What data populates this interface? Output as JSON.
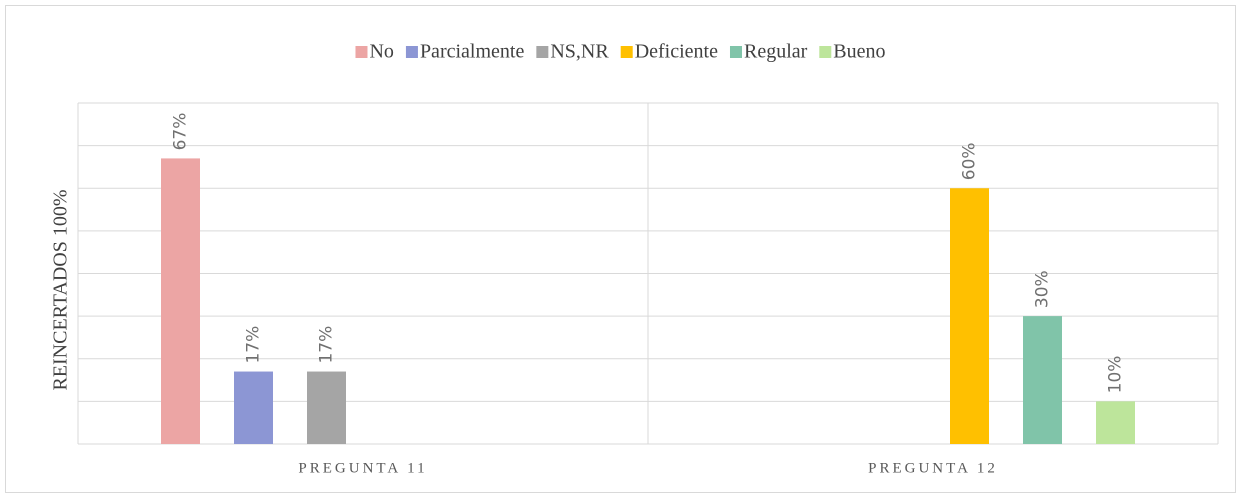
{
  "chart_data": {
    "type": "bar",
    "y_label": "REINCERTADOS 100%",
    "categories": [
      "PREGUNTA 11",
      "PREGUNTA 12"
    ],
    "series": [
      {
        "name": "No",
        "color": "#eca5a4",
        "values": [
          67,
          null
        ],
        "value_labels": [
          "67%",
          null
        ]
      },
      {
        "name": "Parcialmente",
        "color": "#8c96d4",
        "values": [
          17,
          null
        ],
        "value_labels": [
          "17%",
          null
        ]
      },
      {
        "name": "NS,NR",
        "color": "#a5a5a5",
        "values": [
          17,
          null
        ],
        "value_labels": [
          "17%",
          null
        ]
      },
      {
        "name": "Deficiente",
        "color": "#ffc000",
        "values": [
          null,
          60
        ],
        "value_labels": [
          null,
          "60%"
        ]
      },
      {
        "name": "Regular",
        "color": "#80c4a9",
        "values": [
          null,
          30
        ],
        "value_labels": [
          null,
          "30%"
        ]
      },
      {
        "name": "Bueno",
        "color": "#bde59b",
        "values": [
          null,
          10
        ],
        "value_labels": [
          null,
          "10%"
        ]
      }
    ],
    "ylim": [
      0,
      80
    ],
    "yticks": [
      0,
      10,
      20,
      30,
      40,
      50,
      60,
      70,
      80
    ],
    "grid": true,
    "legend": "top"
  }
}
